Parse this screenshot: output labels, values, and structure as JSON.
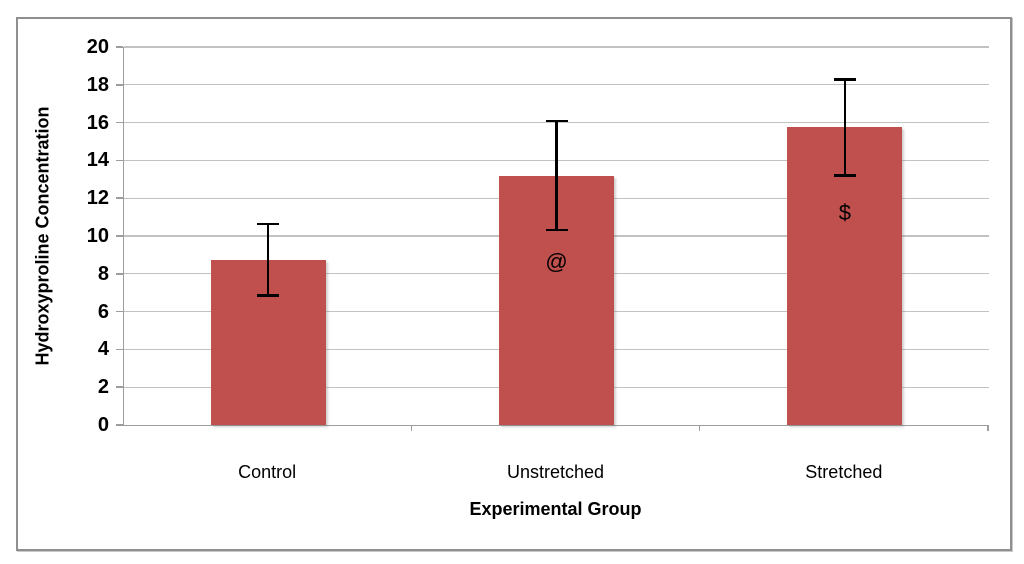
{
  "figure": {
    "background_color": "#ffffff",
    "frame_border_color": "#8f8f8f"
  },
  "chart_data": {
    "type": "bar",
    "title": "",
    "categories": [
      "Control",
      "Unstretched",
      "Stretched"
    ],
    "values": [
      8.75,
      13.2,
      15.75
    ],
    "error_bars": [
      1.9,
      2.9,
      2.55
    ],
    "annotations": [
      {
        "category_index": 1,
        "text": "@",
        "at_value": 8.6
      },
      {
        "category_index": 2,
        "text": "$",
        "at_value": 11.2
      }
    ],
    "xlabel": "Experimental Group",
    "ylabel": "Hydroxyproline Concentration",
    "ylim": [
      0,
      20
    ],
    "ytick_step": 2,
    "yticks": [
      0,
      2,
      4,
      6,
      8,
      10,
      12,
      14,
      16,
      18,
      20
    ],
    "grid": true,
    "legend": false,
    "bar_color": "#c0504d",
    "gridline_color": "#c2c2c2",
    "axis_color": "#9d9d9d",
    "error_bar_color": "#000000"
  }
}
